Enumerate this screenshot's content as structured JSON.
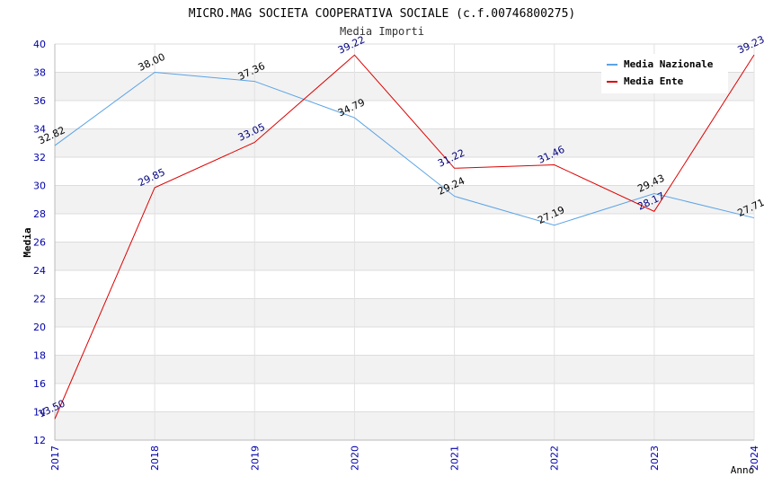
{
  "chart_data": {
    "type": "line",
    "title": "MICRO.MAG SOCIETA COOPERATIVA SOCIALE (c.f.00746800275)",
    "subtitle": "Media Importi",
    "xlabel": "Anno",
    "ylabel": "Media",
    "x": [
      "2017",
      "2018",
      "2019",
      "2020",
      "2021",
      "2022",
      "2023",
      "2024"
    ],
    "ylim": [
      12,
      40
    ],
    "yticks": [
      12,
      14,
      16,
      18,
      20,
      22,
      24,
      26,
      28,
      30,
      32,
      34,
      36,
      38,
      40
    ],
    "grid": true,
    "legend_position": "top-right",
    "series": [
      {
        "name": "Media Nazionale",
        "color": "#5ba3e6",
        "label_color": "#000000",
        "values": [
          32.82,
          38.0,
          37.36,
          34.79,
          29.24,
          27.19,
          29.43,
          27.71
        ],
        "labels": [
          "32.82",
          "38.00",
          "37.36",
          "34.79",
          "29.24",
          "27.19",
          "29.43",
          "27.71"
        ]
      },
      {
        "name": "Media Ente",
        "color": "#dd0000",
        "label_color": "#000080",
        "values": [
          13.5,
          29.85,
          33.05,
          39.22,
          31.22,
          31.46,
          28.17,
          39.23
        ],
        "labels": [
          "13.50",
          "29.85",
          "33.05",
          "39.22",
          "31.22",
          "31.46",
          "28.17",
          "39.23"
        ]
      }
    ]
  }
}
